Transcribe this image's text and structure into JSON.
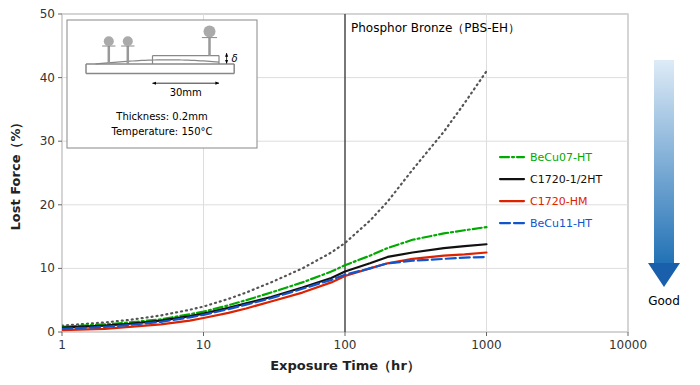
{
  "chart_data": {
    "type": "line",
    "xlabel": "Exposure Time（hr）",
    "ylabel": "Lost Force（%）",
    "log": "x",
    "grid": true,
    "legend": "right",
    "xlim": [
      1,
      10000
    ],
    "ylim": [
      0,
      50
    ],
    "xticks": [
      1,
      10,
      100,
      1000,
      10000
    ],
    "yticks": [
      0,
      10,
      20,
      30,
      40,
      50
    ],
    "x": [
      1,
      2,
      3,
      5,
      8,
      10,
      15,
      20,
      30,
      50,
      80,
      100,
      150,
      200,
      300,
      500,
      700,
      1000
    ],
    "series": [
      {
        "color": "#555555",
        "line_style": "dotted",
        "values": [
          1.0,
          1.5,
          1.9,
          2.6,
          3.5,
          4.0,
          5.2,
          6.2,
          7.8,
          10.0,
          12.5,
          14.0,
          17.5,
          20.5,
          25.5,
          31.5,
          36.0,
          41.0
        ]
      },
      {
        "name": "BeCu07-HT",
        "color": "#00aa00",
        "line_style": "dashdot",
        "values": [
          0.8,
          1.2,
          1.5,
          2.0,
          2.8,
          3.2,
          4.2,
          5.0,
          6.2,
          7.8,
          9.5,
          10.5,
          12.0,
          13.2,
          14.5,
          15.5,
          16.0,
          16.5
        ]
      },
      {
        "name": "C1720-1/2HT",
        "color": "#111111",
        "line_style": "solid",
        "values": [
          0.7,
          1.0,
          1.3,
          1.8,
          2.5,
          2.9,
          3.8,
          4.5,
          5.5,
          7.0,
          8.5,
          9.5,
          10.8,
          11.8,
          12.5,
          13.2,
          13.5,
          13.8
        ]
      },
      {
        "name": "C1720-HM",
        "color": "#dd2200",
        "line_style": "solid",
        "values": [
          0.3,
          0.5,
          0.8,
          1.2,
          1.8,
          2.2,
          3.0,
          3.7,
          4.8,
          6.2,
          7.8,
          8.8,
          10.0,
          10.8,
          11.5,
          12.0,
          12.2,
          12.5
        ]
      },
      {
        "name": "BeCu11-HT",
        "color": "#1155cc",
        "line_style": "dashed",
        "values": [
          0.5,
          0.8,
          1.1,
          1.6,
          2.3,
          2.7,
          3.6,
          4.3,
          5.3,
          6.8,
          8.2,
          9.0,
          10.0,
          10.8,
          11.2,
          11.5,
          11.7,
          11.8
        ]
      }
    ],
    "annotations": [
      {
        "text": "Phosphor Bronze（PBS-EH）",
        "x": 100
      },
      {
        "text": "Good"
      }
    ],
    "inset": {
      "labels": [
        "Thickness: 0.2mm",
        "Temperature: 150°C"
      ],
      "dimension_label": "30mm",
      "gap_label": "δ"
    }
  }
}
